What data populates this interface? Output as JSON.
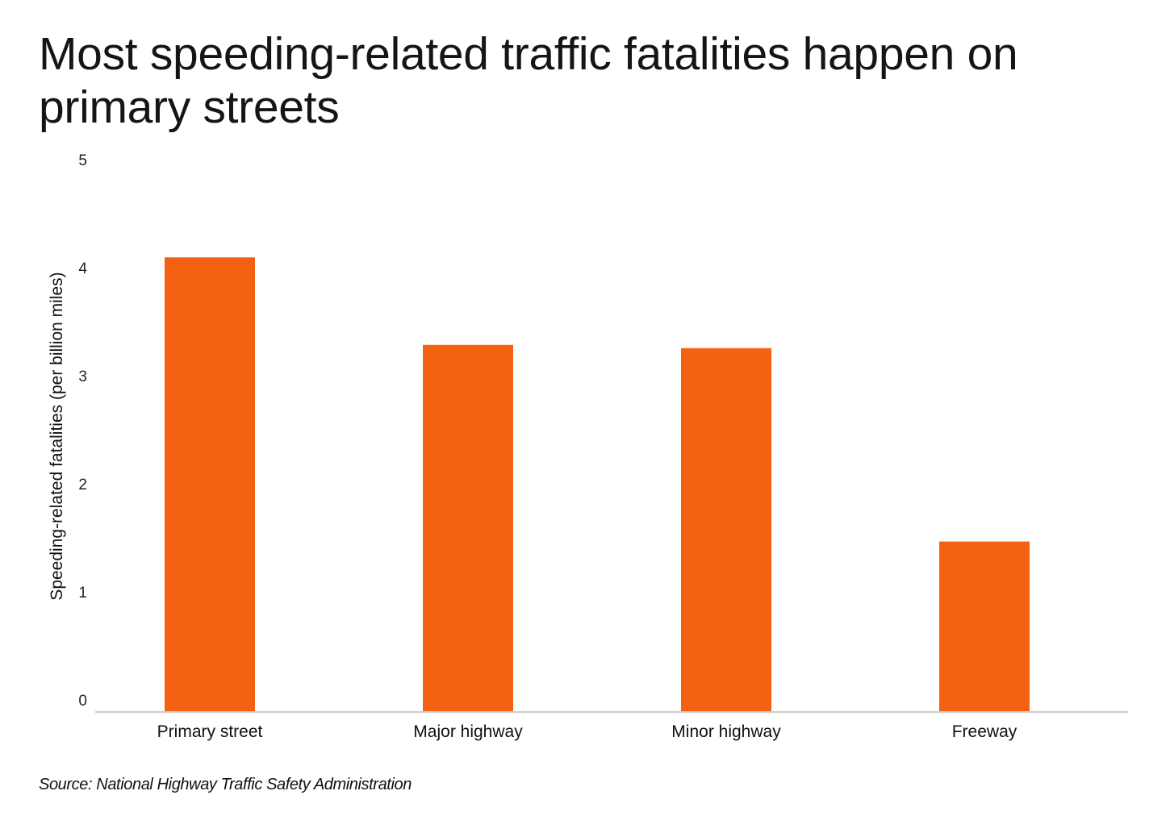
{
  "chart_data": {
    "type": "bar",
    "title": "Most speeding-related traffic fatalities happen on primary streets",
    "xlabel": "",
    "ylabel": "Speeding-related fatalities (per billion miles)",
    "categories": [
      "Primary street",
      "Major highway",
      "Minor highway",
      "Freeway"
    ],
    "values": [
      4.2,
      3.39,
      3.36,
      1.57
    ],
    "ylim": [
      0,
      5
    ],
    "yticks": [
      0,
      1,
      2,
      3,
      4,
      5
    ],
    "grid": false,
    "legend": "none",
    "bar_color": "#f26210"
  },
  "source": "Source: National Highway Traffic Safety Administration"
}
